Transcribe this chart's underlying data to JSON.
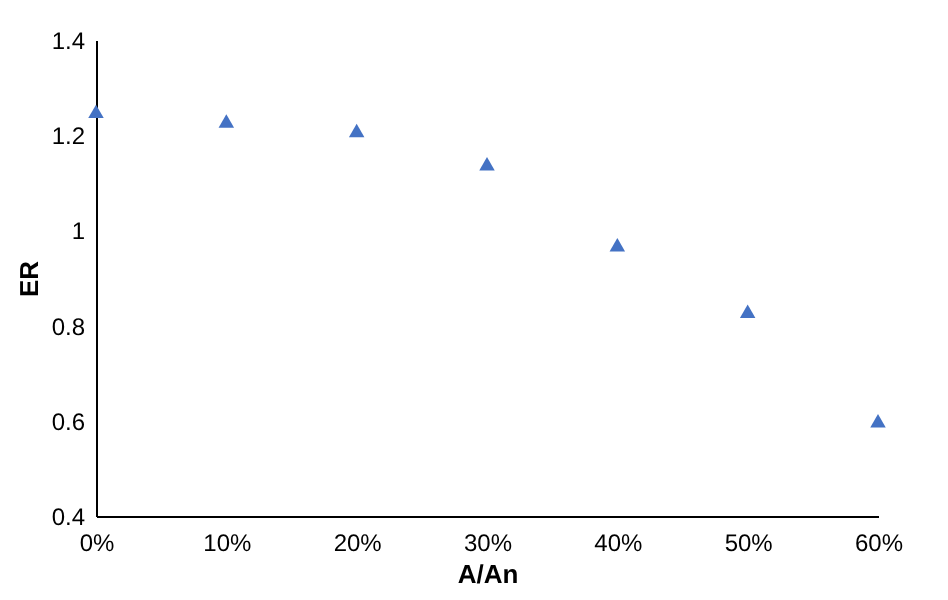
{
  "chart_data": {
    "type": "scatter",
    "xlabel": "A/An",
    "ylabel": "ER",
    "x": [
      0,
      10,
      20,
      30,
      40,
      50,
      60
    ],
    "series": [
      {
        "color": "#4472c4",
        "values": [
          1.25,
          1.23,
          1.21,
          1.14,
          0.97,
          0.83,
          0.6
        ]
      }
    ],
    "xlim": [
      0,
      60
    ],
    "xticks": [
      {
        "value": 0,
        "label": "0%"
      },
      {
        "value": 10,
        "label": "10%"
      },
      {
        "value": 20,
        "label": "20%"
      },
      {
        "value": 30,
        "label": "30%"
      },
      {
        "value": 40,
        "label": "40%"
      },
      {
        "value": 50,
        "label": "50%"
      },
      {
        "value": 60,
        "label": "60%"
      }
    ],
    "ylim": [
      0.4,
      1.4
    ],
    "yticks": [
      0.4,
      0.6,
      0.8,
      1,
      1.2,
      1.4
    ],
    "marker": "triangle",
    "grid": false
  }
}
